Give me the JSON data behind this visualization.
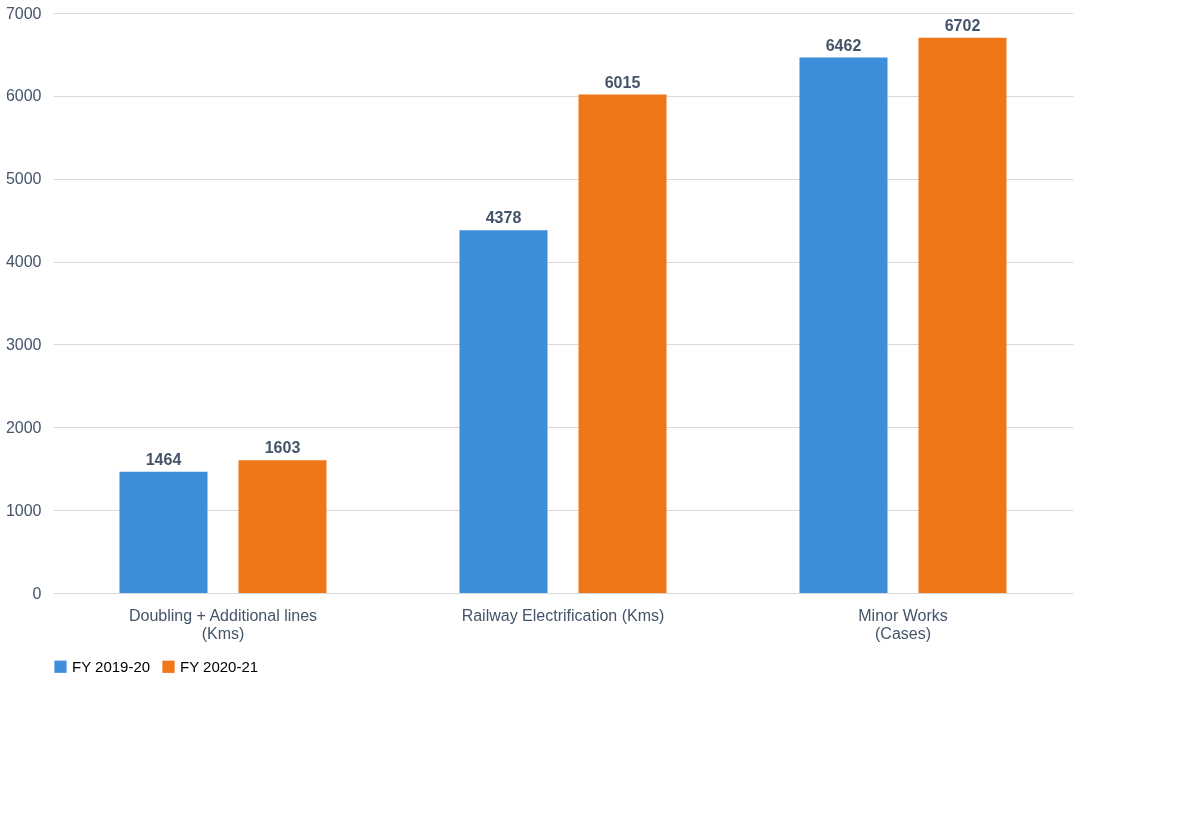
{
  "chart_data": {
    "type": "bar",
    "categories": [
      "Doubling + Additional lines\n(Kms)",
      "Railway Electrification (Kms)",
      "Minor Works\n(Cases)"
    ],
    "series": [
      {
        "name": "FY 2019-20",
        "color": "#3f8edb",
        "values": [
          1464,
          4378,
          6462
        ]
      },
      {
        "name": "FY 2020-21",
        "color": "#f0761a",
        "values": [
          1603,
          6015,
          6702
        ]
      }
    ],
    "ylim": [
      0,
      7000
    ],
    "yticks": [
      0,
      1000,
      2000,
      3000,
      4000,
      5000,
      6000,
      7000
    ],
    "grid": "y",
    "legend": "bottom",
    "data_labels": true
  }
}
